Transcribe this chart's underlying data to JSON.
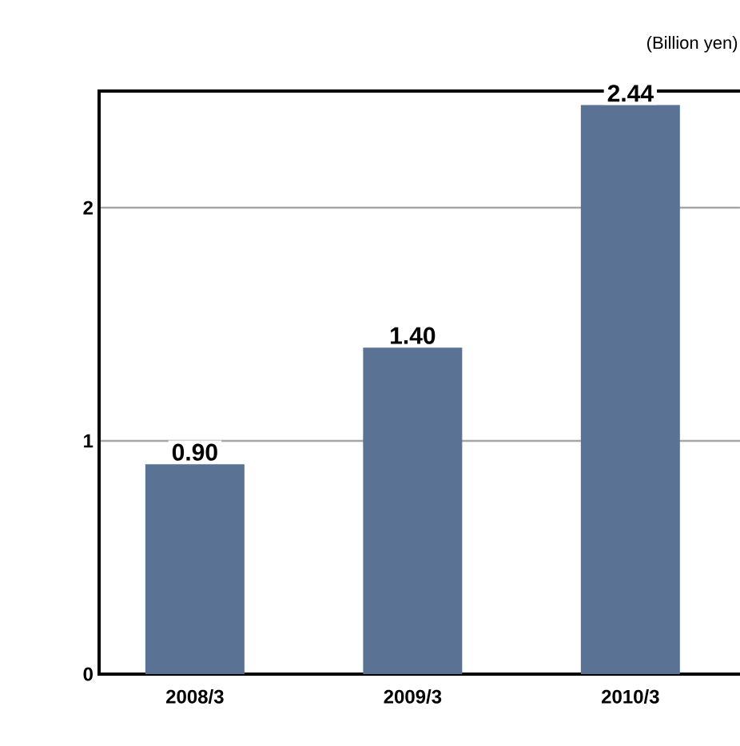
{
  "chart_data": {
    "type": "bar",
    "categories": [
      "2008/3",
      "2009/3",
      "2010/3"
    ],
    "values": [
      0.9,
      1.4,
      2.44
    ],
    "value_labels": [
      "0.90",
      "1.40",
      "2.44"
    ],
    "color": "#5a7394",
    "ylim": [
      0,
      2.5
    ],
    "yticks": [
      0,
      1,
      2
    ],
    "grid": "y",
    "annotations": [
      "(Billion yen)"
    ]
  }
}
